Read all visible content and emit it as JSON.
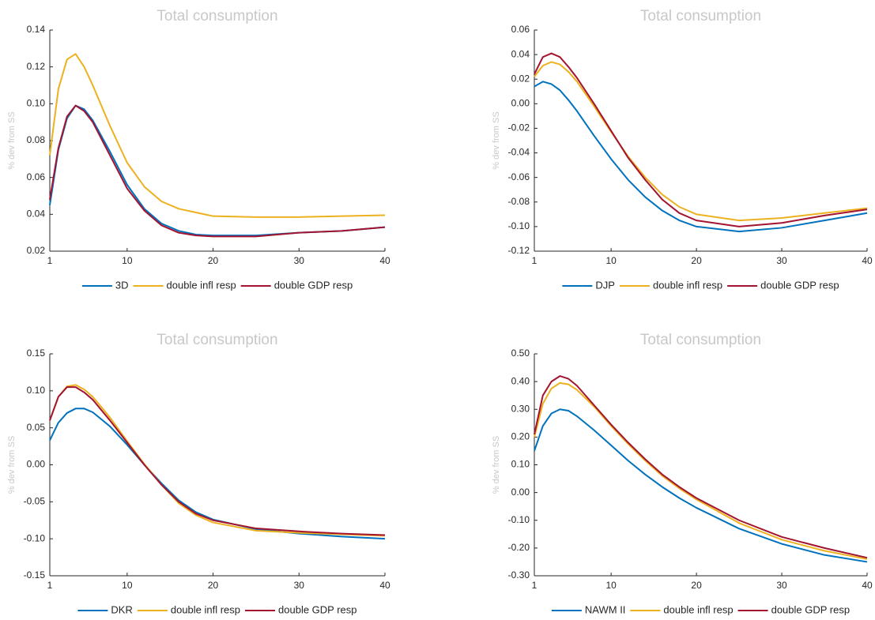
{
  "chart_data": [
    {
      "type": "line",
      "title": "Total consumption",
      "y_label": "% dev from SS",
      "x": [
        1,
        2,
        3,
        4,
        5,
        6,
        8,
        10,
        12,
        14,
        16,
        18,
        20,
        25,
        30,
        35,
        40
      ],
      "xlim": [
        1,
        40
      ],
      "xticks": [
        1,
        10,
        20,
        30,
        40
      ],
      "ylim": [
        0.02,
        0.14
      ],
      "yticks": [
        0.02,
        0.04,
        0.06,
        0.08,
        {
          "value": 0.1,
          "label": "0.10"
        },
        0.12,
        0.14
      ],
      "series": [
        {
          "name": "3D",
          "color": "#0072bd",
          "values": [
            0.045,
            0.075,
            0.092,
            0.099,
            0.097,
            0.091,
            0.074,
            0.056,
            0.043,
            0.035,
            0.031,
            0.029,
            0.0285,
            0.0285,
            0.03,
            0.031,
            0.033
          ]
        },
        {
          "name": "double infl resp",
          "color": "#edb120",
          "values": [
            0.072,
            0.108,
            0.124,
            0.127,
            0.12,
            0.11,
            0.088,
            0.068,
            0.055,
            0.047,
            0.043,
            0.041,
            0.039,
            0.0385,
            0.0385,
            0.039,
            0.0395
          ]
        },
        {
          "name": "double GDP resp",
          "color": "#a2142f",
          "values": [
            0.048,
            0.076,
            0.093,
            0.099,
            0.096,
            0.09,
            0.072,
            0.054,
            0.042,
            0.034,
            0.03,
            0.0285,
            0.028,
            0.028,
            0.03,
            0.031,
            0.033
          ]
        }
      ]
    },
    {
      "type": "line",
      "title": "Total consumption",
      "y_label": "% dev from SS",
      "x": [
        1,
        2,
        3,
        4,
        5,
        6,
        8,
        10,
        12,
        14,
        16,
        18,
        20,
        25,
        30,
        35,
        40
      ],
      "xlim": [
        1,
        40
      ],
      "xticks": [
        1,
        10,
        20,
        30,
        40
      ],
      "ylim": [
        -0.12,
        0.06
      ],
      "yticks": [
        -0.12,
        {
          "value": -0.1,
          "label": "-0.10"
        },
        -0.08,
        -0.06,
        -0.04,
        -0.02,
        {
          "value": 0,
          "label": "0.00"
        },
        0.02,
        0.04,
        0.06
      ],
      "series": [
        {
          "name": "DJP",
          "color": "#0072bd",
          "values": [
            0.014,
            0.018,
            0.016,
            0.011,
            0.003,
            -0.006,
            -0.026,
            -0.045,
            -0.062,
            -0.076,
            -0.087,
            -0.095,
            -0.1,
            -0.104,
            -0.101,
            -0.095,
            -0.089
          ]
        },
        {
          "name": "double infl resp",
          "color": "#edb120",
          "values": [
            0.022,
            0.031,
            0.034,
            0.032,
            0.026,
            0.018,
            -0.002,
            -0.023,
            -0.043,
            -0.06,
            -0.074,
            -0.084,
            -0.09,
            -0.095,
            -0.093,
            -0.089,
            -0.085
          ]
        },
        {
          "name": "double GDP resp",
          "color": "#a2142f",
          "values": [
            0.024,
            0.038,
            0.041,
            0.038,
            0.03,
            0.021,
            0.0,
            -0.022,
            -0.044,
            -0.062,
            -0.078,
            -0.089,
            -0.095,
            -0.1,
            -0.097,
            -0.091,
            -0.086
          ]
        }
      ]
    },
    {
      "type": "line",
      "title": "Total consumption",
      "y_label": "% dev from SS",
      "x": [
        1,
        2,
        3,
        4,
        5,
        6,
        8,
        10,
        12,
        14,
        16,
        18,
        20,
        25,
        30,
        35,
        40
      ],
      "xlim": [
        1,
        40
      ],
      "xticks": [
        1,
        10,
        20,
        30,
        40
      ],
      "ylim": [
        -0.15,
        0.15
      ],
      "yticks": [
        -0.15,
        {
          "value": -0.1,
          "label": "-0.10"
        },
        -0.05,
        {
          "value": 0,
          "label": "0.00"
        },
        0.05,
        {
          "value": 0.1,
          "label": "0.10"
        },
        0.15
      ],
      "series": [
        {
          "name": "DKR",
          "color": "#0072bd",
          "values": [
            0.033,
            0.057,
            0.07,
            0.076,
            0.076,
            0.071,
            0.052,
            0.027,
            0.0,
            -0.025,
            -0.048,
            -0.064,
            -0.074,
            -0.087,
            -0.093,
            -0.097,
            -0.1
          ]
        },
        {
          "name": "double infl resp",
          "color": "#edb120",
          "values": [
            0.06,
            0.092,
            0.106,
            0.108,
            0.102,
            0.092,
            0.064,
            0.032,
            0.001,
            -0.027,
            -0.052,
            -0.068,
            -0.078,
            -0.089,
            -0.092,
            -0.094,
            -0.096
          ]
        },
        {
          "name": "double GDP resp",
          "color": "#a2142f",
          "values": [
            0.06,
            0.092,
            0.105,
            0.105,
            0.098,
            0.088,
            0.06,
            0.03,
            0.0,
            -0.027,
            -0.05,
            -0.066,
            -0.075,
            -0.086,
            -0.09,
            -0.093,
            -0.095
          ]
        }
      ]
    },
    {
      "type": "line",
      "title": "Total consumption",
      "y_label": "% dev from SS",
      "x": [
        1,
        2,
        3,
        4,
        5,
        6,
        8,
        10,
        12,
        14,
        16,
        18,
        20,
        25,
        30,
        35,
        40
      ],
      "xlim": [
        1,
        40
      ],
      "xticks": [
        1,
        10,
        20,
        30,
        40
      ],
      "ylim": [
        -0.3,
        0.5
      ],
      "yticks": [
        {
          "value": -0.3,
          "label": "-0.30"
        },
        {
          "value": -0.2,
          "label": "-0.20"
        },
        {
          "value": -0.1,
          "label": "-0.10"
        },
        {
          "value": 0,
          "label": "0.00"
        },
        {
          "value": 0.1,
          "label": "0.10"
        },
        {
          "value": 0.2,
          "label": "0.20"
        },
        {
          "value": 0.3,
          "label": "0.30"
        },
        {
          "value": 0.4,
          "label": "0.40"
        },
        {
          "value": 0.5,
          "label": "0.50"
        }
      ],
      "series": [
        {
          "name": "NAWM II",
          "color": "#0072bd",
          "values": [
            0.15,
            0.24,
            0.285,
            0.3,
            0.295,
            0.275,
            0.225,
            0.17,
            0.115,
            0.065,
            0.02,
            -0.02,
            -0.055,
            -0.13,
            -0.185,
            -0.225,
            -0.25
          ]
        },
        {
          "name": "double infl resp",
          "color": "#edb120",
          "values": [
            0.2,
            0.32,
            0.375,
            0.395,
            0.39,
            0.37,
            0.31,
            0.24,
            0.175,
            0.115,
            0.06,
            0.015,
            -0.025,
            -0.11,
            -0.17,
            -0.21,
            -0.24
          ]
        },
        {
          "name": "double GDP resp",
          "color": "#a2142f",
          "values": [
            0.21,
            0.35,
            0.4,
            0.42,
            0.41,
            0.385,
            0.315,
            0.245,
            0.18,
            0.12,
            0.065,
            0.02,
            -0.02,
            -0.1,
            -0.16,
            -0.2,
            -0.235
          ]
        }
      ]
    }
  ]
}
